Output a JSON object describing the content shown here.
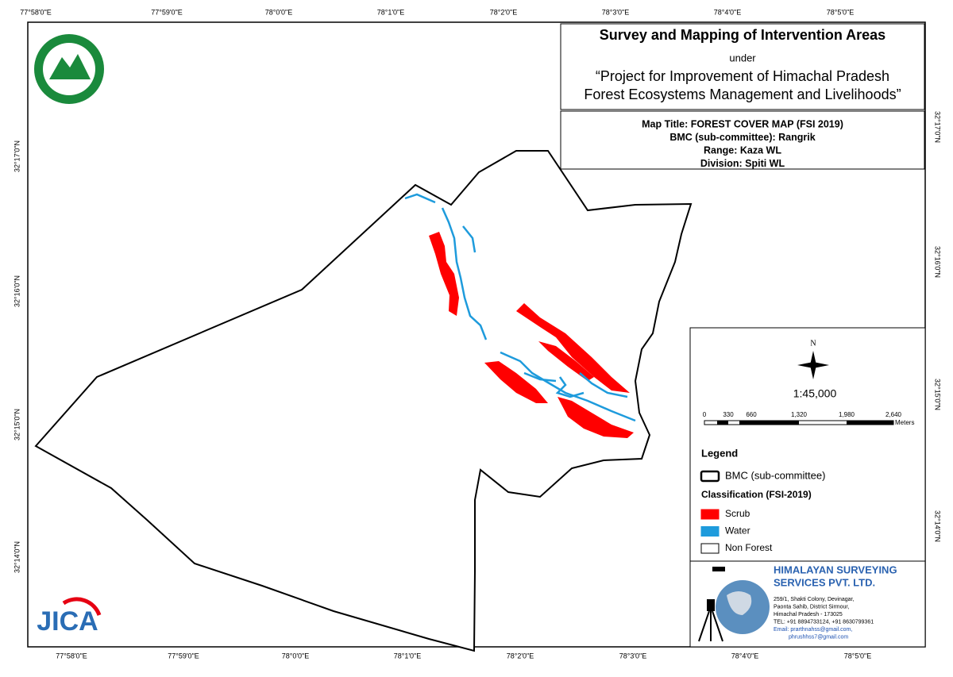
{
  "graticule": {
    "top": [
      "77°58'0\"E",
      "77°59'0\"E",
      "78°0'0\"E",
      "78°1'0\"E",
      "78°2'0\"E",
      "78°3'0\"E",
      "78°4'0\"E",
      "78°5'0\"E"
    ],
    "bottom": [
      "77°58'0\"E",
      "77°59'0\"E",
      "78°0'0\"E",
      "78°1'0\"E",
      "78°2'0\"E",
      "78°3'0\"E",
      "78°4'0\"E",
      "78°5'0\"E"
    ],
    "left": [
      "32°17'0\"N",
      "32°16'0\"N",
      "32°15'0\"N",
      "32°14'0\"N"
    ],
    "right": [
      "32°17'0\"N",
      "32°16'0\"N",
      "32°15'0\"N",
      "32°14'0\"N"
    ]
  },
  "header": {
    "title": "Survey and Mapping of Intervention Areas",
    "under": "under",
    "project_line1": "“Project for Improvement of Himachal Pradesh",
    "project_line2": "Forest Ecosystems Management and Livelihoods”"
  },
  "map_info": [
    "Map Title: FOREST COVER MAP (FSI 2019)",
    "BMC (sub-committee): Rangrik",
    "Range: Kaza WL",
    "Division: Spiti WL"
  ],
  "north": "N",
  "scale": {
    "ratio": "1:45,000",
    "labels": [
      "0",
      "330",
      "660",
      "1,320",
      "1,980",
      "2,640"
    ],
    "unit": "Meters"
  },
  "legend": {
    "title": "Legend",
    "boundary": "BMC (sub-committee)",
    "classification": "Classification (FSI-2019)",
    "items": [
      {
        "label": "Scrub",
        "color": "#ff0000"
      },
      {
        "label": "Water",
        "color": "#1e9bdc"
      },
      {
        "label": "Non Forest",
        "color": "#ffffff"
      }
    ]
  },
  "company": {
    "name_line1": "HIMALAYAN SURVEYING",
    "name_line2": "SERVICES PVT. LTD.",
    "address": [
      "259/1, Shakti Colony, Devinagar,",
      "Paonta Sahib, District Sirmour,",
      "Himachal Pradesh - 173025",
      "TEL: +91 8894733124, +91 8630799361",
      "Email: prarthnahss@gmail.com,",
      "phrushhss7@gmail.com"
    ]
  },
  "logo": {
    "jica": "JICA"
  }
}
